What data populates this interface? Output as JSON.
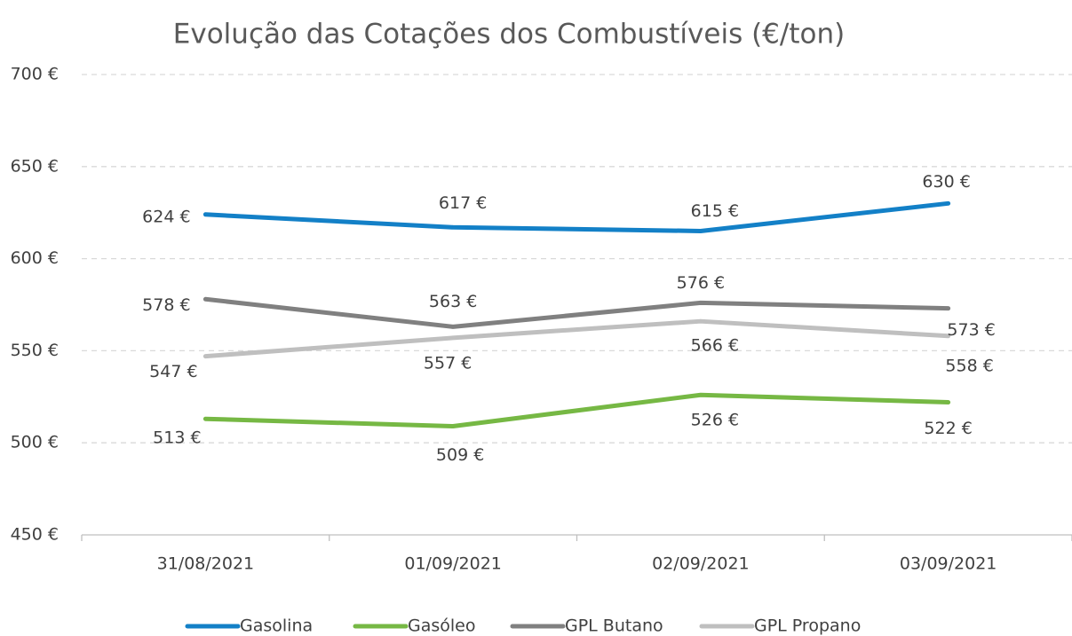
{
  "chart_data": {
    "type": "line",
    "title": "Evolução das Cotações dos Combustíveis (€/ton)",
    "categories": [
      "31/08/2021",
      "01/09/2021",
      "02/09/2021",
      "03/09/2021"
    ],
    "series": [
      {
        "name": "Gasolina",
        "color": "#1380c7",
        "values": [
          624,
          617,
          615,
          630
        ],
        "value_labels": [
          "624 €",
          "617 €",
          "615 €",
          "630 €"
        ]
      },
      {
        "name": "Gasóleo",
        "color": "#76b844",
        "values": [
          513,
          509,
          526,
          522
        ],
        "value_labels": [
          "513 €",
          "509 €",
          "526 €",
          "522 €"
        ]
      },
      {
        "name": "GPL Butano",
        "color": "#808080",
        "values": [
          578,
          563,
          576,
          573
        ],
        "value_labels": [
          "578 €",
          "563 €",
          "576 €",
          "573 €"
        ]
      },
      {
        "name": "GPL Propano",
        "color": "#bfbfbf",
        "values": [
          547,
          557,
          566,
          558
        ],
        "value_labels": [
          "547 €",
          "557 €",
          "566 €",
          "558 €"
        ]
      }
    ],
    "ylim": [
      450,
      700
    ],
    "yticks": [
      {
        "value": 450,
        "label": "450 €"
      },
      {
        "value": 500,
        "label": "500 €"
      },
      {
        "value": 550,
        "label": "550 €"
      },
      {
        "value": 600,
        "label": "600 €"
      },
      {
        "value": 650,
        "label": "650 €"
      },
      {
        "value": 700,
        "label": "700 €"
      }
    ],
    "grid": true,
    "legend": "bottom"
  }
}
